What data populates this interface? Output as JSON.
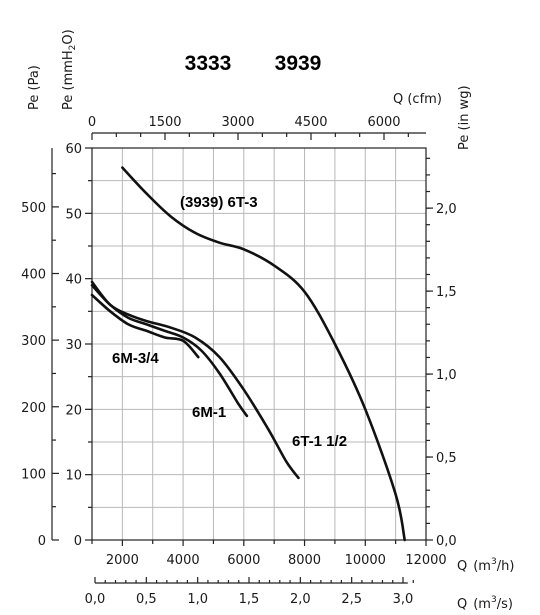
{
  "chart_data": {
    "type": "line",
    "titles": [
      "3333",
      "3939"
    ],
    "axes": {
      "x_bottom_m3h": {
        "label_prefix": "Q",
        "unit": "m3/h",
        "ticks": [
          "2000",
          "4000",
          "6000",
          "8000",
          "10000",
          "12000"
        ],
        "range": [
          1000,
          12000
        ]
      },
      "x_bottom_m3s": {
        "label_prefix": "Q",
        "unit": "m3/s",
        "ticks": [
          "0,0",
          "0,5",
          "1,0",
          "1,5",
          "2,0",
          "2,5",
          "3,0"
        ]
      },
      "x_top_cfm": {
        "label": "Q  (cfm)",
        "ticks": [
          "0",
          "1500",
          "3000",
          "4500",
          "6000"
        ]
      },
      "y_left_pa": {
        "label": "Pe  (Pa)",
        "ticks": [
          "0",
          "100",
          "200",
          "300",
          "400",
          "500"
        ]
      },
      "y_left_mmh2o": {
        "label_prefix": "Pe  (mmH",
        "label_sub": "2",
        "label_suffix": "O)",
        "ticks": [
          "0",
          "10",
          "20",
          "30",
          "40",
          "50",
          "60"
        ],
        "range": [
          0,
          60
        ]
      },
      "y_right_inwg": {
        "label": "Pe  (in wg)",
        "ticks": [
          "0,0",
          "0,5",
          "1,0",
          "1,5",
          "2,0"
        ]
      }
    },
    "grid": true,
    "series": [
      {
        "name": "(3939) 6T-3",
        "x": [
          2000,
          2800,
          3600,
          4400,
          5200,
          6000,
          7000,
          8000,
          9000,
          10000,
          11000,
          11300
        ],
        "y": [
          57,
          53,
          49.5,
          47,
          45.5,
          44.5,
          42,
          38,
          30,
          20,
          7,
          0
        ]
      },
      {
        "name": "6T-1 1/2",
        "x": [
          1000,
          1600,
          2200,
          2800,
          3600,
          4400,
          5200,
          6000,
          6800,
          7400,
          7800
        ],
        "y": [
          39.5,
          36,
          34.5,
          33.5,
          32.5,
          31,
          28,
          23,
          17,
          12,
          9.5
        ]
      },
      {
        "name": "6M-1",
        "x": [
          1000,
          1600,
          2200,
          2800,
          3400,
          4000,
          4600,
          5200,
          5800,
          6100
        ],
        "y": [
          39,
          36,
          34,
          33,
          32,
          31,
          29,
          25.5,
          21,
          19
        ]
      },
      {
        "name": "6M-3/4",
        "x": [
          1000,
          1600,
          2200,
          2800,
          3400,
          4000,
          4500
        ],
        "y": [
          37.5,
          35,
          33,
          32,
          31,
          30.5,
          28
        ]
      }
    ]
  }
}
